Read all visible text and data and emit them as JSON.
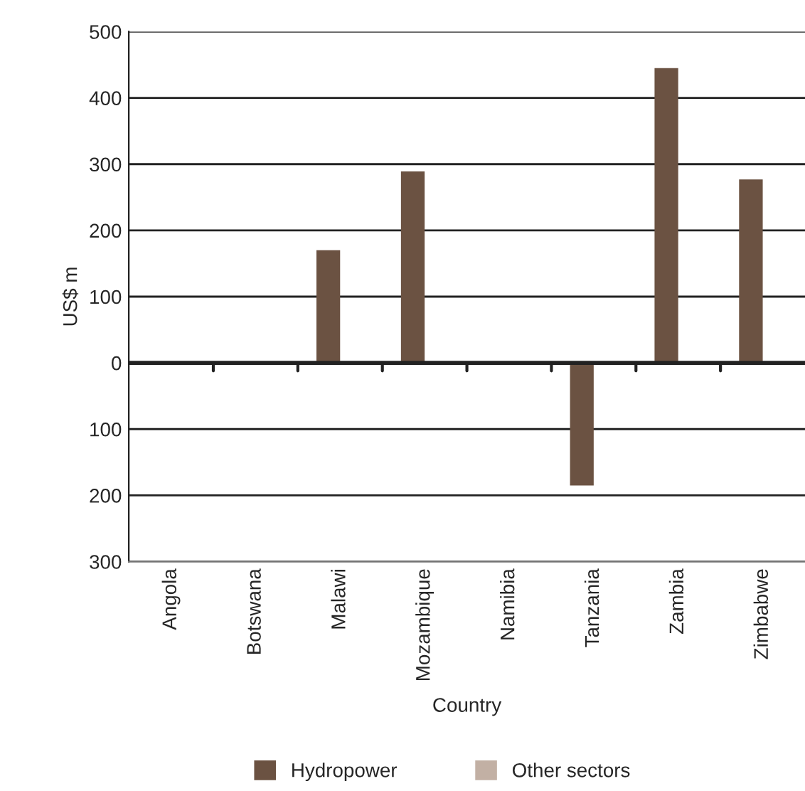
{
  "chart_data": {
    "type": "bar",
    "xlabel": "Country",
    "ylabel": "US$ m",
    "categories": [
      "Angola",
      "Botswana",
      "Malawi",
      "Mozambique",
      "Namibia",
      "Tanzania",
      "Zambia",
      "Zimbabwe"
    ],
    "series": [
      {
        "name": "Hydropower",
        "color": "#6b5242",
        "values": [
          0,
          0,
          170,
          289,
          0,
          -185,
          445,
          277
        ]
      },
      {
        "name": "Other sectors",
        "color": "#c2b0a4",
        "values": [
          0,
          0,
          0,
          0,
          0,
          0,
          0,
          0
        ]
      }
    ],
    "ylim": [
      -300,
      500
    ],
    "yticks": [
      {
        "value": -300,
        "label": "300"
      },
      {
        "value": -200,
        "label": "200"
      },
      {
        "value": -100,
        "label": "100"
      },
      0,
      100,
      200,
      300,
      400,
      500
    ],
    "grid": "y",
    "legend": "bottom"
  }
}
